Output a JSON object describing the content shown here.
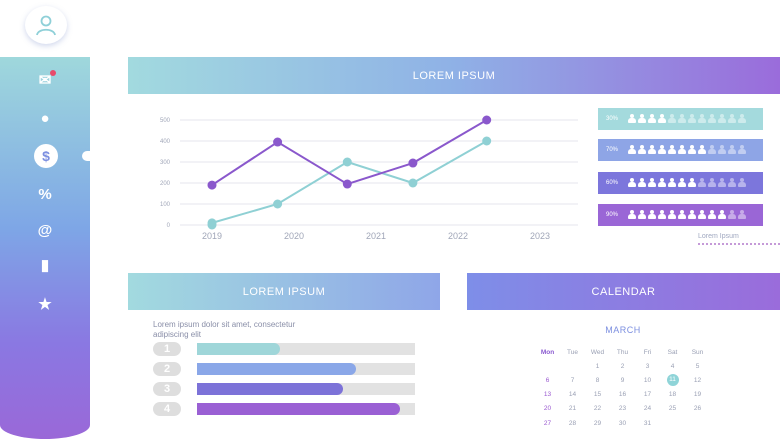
{
  "header_title": "LOREM IPSUM",
  "section2_title": "LOREM IPSUM",
  "calendar_title": "CALENDAR",
  "sidebar": {
    "items": [
      {
        "name": "mail-icon",
        "glyph": "✉"
      },
      {
        "name": "user-circle-icon",
        "glyph": "●"
      },
      {
        "name": "dollar-icon",
        "glyph": "$"
      },
      {
        "name": "percent-icon",
        "glyph": "%"
      },
      {
        "name": "at-icon",
        "glyph": "@"
      },
      {
        "name": "bar-chart-icon",
        "glyph": "▮"
      },
      {
        "name": "star-icon",
        "glyph": "★"
      }
    ]
  },
  "people_panel": {
    "rows": [
      {
        "label": "30%",
        "filled": 4,
        "total": 12,
        "color": "#a4dadd"
      },
      {
        "label": "70%",
        "filled": 8,
        "total": 12,
        "color": "#8ea5e6"
      },
      {
        "label": "60%",
        "filled": 7,
        "total": 12,
        "color": "#7c76dc"
      },
      {
        "label": "90%",
        "filled": 10,
        "total": 12,
        "color": "#9a66d6"
      }
    ],
    "legend": "Lorem Ipsum"
  },
  "chart_data": {
    "type": "line",
    "x": [
      "2019",
      "2020",
      "2021",
      "2022",
      "2023"
    ],
    "yticks": [
      0,
      100,
      200,
      300,
      400,
      500
    ],
    "ylim": [
      0,
      500
    ],
    "series": [
      {
        "color": "#8fd0d4",
        "points": [
          [
            2019,
            0
          ],
          [
            2019,
            10
          ],
          [
            2019.8,
            100
          ],
          [
            2020.65,
            300
          ],
          [
            2021.45,
            200
          ],
          [
            2022.35,
            400
          ]
        ]
      },
      {
        "color": "#8a58cc",
        "points": [
          [
            2019,
            190
          ],
          [
            2019.8,
            395
          ],
          [
            2020.65,
            195
          ],
          [
            2021.45,
            295
          ],
          [
            2022.35,
            500
          ]
        ]
      }
    ]
  },
  "description": "Lorem ipsum dolor sit amet, consectetur adipiscing elit",
  "bars": [
    {
      "number": "1",
      "value": 0.38,
      "color": "#9fd6d9"
    },
    {
      "number": "2",
      "value": 0.73,
      "color": "#8aa7e8"
    },
    {
      "number": "3",
      "value": 0.67,
      "color": "#7c72d8"
    },
    {
      "number": "4",
      "value": 0.93,
      "color": "#9a60d4"
    }
  ],
  "calendar": {
    "month": "MARCH",
    "weekdays": [
      "Mon",
      "Tue",
      "Wed",
      "Thu",
      "Fri",
      "Sat",
      "Sun"
    ],
    "weeks": [
      [
        "",
        "",
        "1",
        "2",
        "3",
        "4",
        "5"
      ],
      [
        "6",
        "7",
        "8",
        "9",
        "10",
        "11",
        "12"
      ],
      [
        "13",
        "14",
        "15",
        "16",
        "17",
        "18",
        "19"
      ],
      [
        "20",
        "21",
        "22",
        "23",
        "24",
        "25",
        "26"
      ],
      [
        "27",
        "28",
        "29",
        "30",
        "31",
        "",
        ""
      ]
    ],
    "today": "11"
  }
}
